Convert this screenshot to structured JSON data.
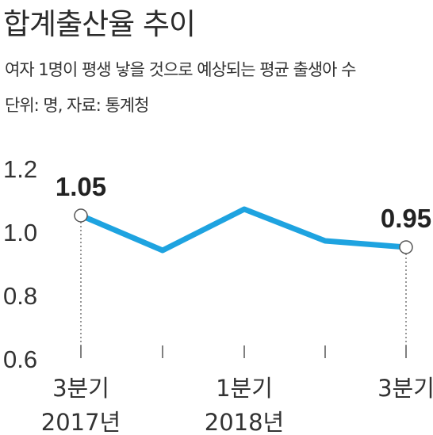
{
  "title": "합계출산율 추이",
  "subtitle": "여자 1명이 평생 낳을 것으로 예상되는 평균 출생아 수",
  "source": "단위: 명, 자료: 통계청",
  "colors": {
    "line": "#1ea3e0",
    "marker_fill": "#ffffff",
    "marker_stroke": "#555555",
    "guide": "#555555"
  },
  "chart_data": {
    "type": "line",
    "title": "합계출산율 추이",
    "ylim": [
      0.6,
      1.2
    ],
    "yticks": [
      "1.2",
      "1.0",
      "0.8",
      "0.6"
    ],
    "grid": false,
    "x": [
      "2017 3Q",
      "2017 4Q",
      "2018 1Q",
      "2018 2Q",
      "2018 3Q"
    ],
    "x_tick_labels": [
      {
        "line1": "3분기",
        "line2": "2017년"
      },
      {
        "line1": "",
        "line2": ""
      },
      {
        "line1": "1분기",
        "line2": "2018년"
      },
      {
        "line1": "",
        "line2": ""
      },
      {
        "line1": "3분기",
        "line2": ""
      }
    ],
    "series": [
      {
        "values": [
          1.05,
          0.94,
          1.07,
          0.97,
          0.95
        ]
      }
    ],
    "annotations": [
      {
        "index": 0,
        "text": "1.05"
      },
      {
        "index": 4,
        "text": "0.95"
      }
    ]
  }
}
